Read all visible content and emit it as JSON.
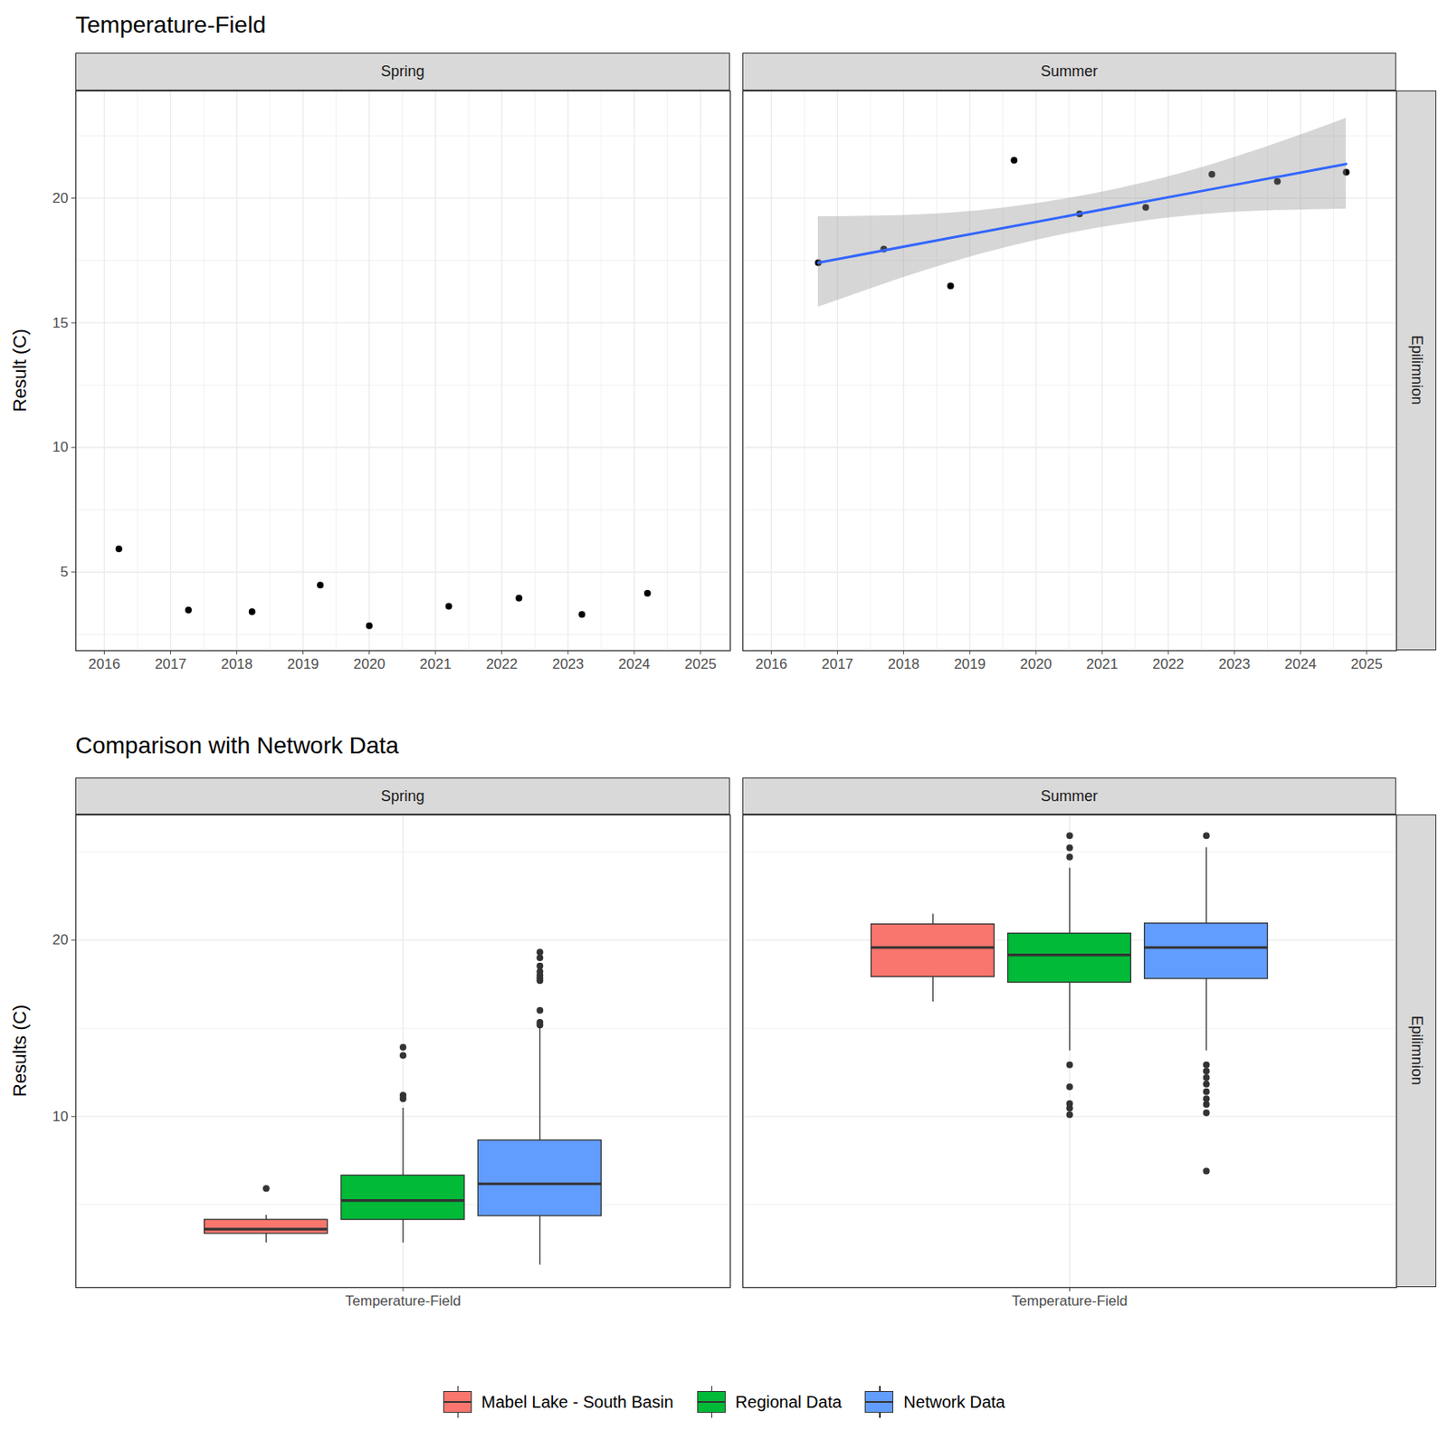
{
  "chart_data": [
    {
      "type": "scatter",
      "title": "Temperature-Field",
      "facet": "Spring",
      "y_label": "Result (C)",
      "x": [
        2016.22,
        2017.27,
        2018.23,
        2019.26,
        2020.0,
        2021.2,
        2022.26,
        2023.21,
        2024.2
      ],
      "values": [
        5.93,
        3.48,
        3.41,
        4.48,
        2.85,
        3.63,
        3.96,
        3.3,
        4.15
      ],
      "color": "#000000",
      "marker": "circle",
      "xlim": [
        2015.57,
        2025.45
      ],
      "xticks": [
        2016,
        2017,
        2018,
        2019,
        2020,
        2021,
        2022,
        2023,
        2024,
        2025
      ],
      "ylim": [
        1.85,
        24.3
      ],
      "yticks": [
        5,
        10,
        15,
        20
      ],
      "grid": true
    },
    {
      "type": "scatter",
      "facet": "Summer",
      "row_facet": "Epilimnion",
      "x": [
        2016.71,
        2017.7,
        2018.71,
        2019.67,
        2020.66,
        2021.66,
        2022.66,
        2023.65,
        2024.69
      ],
      "values": [
        17.41,
        17.96,
        16.48,
        21.52,
        19.37,
        19.63,
        20.96,
        20.67,
        21.04
      ],
      "color": "#000000",
      "marker": "circle",
      "trend": {
        "x": [
          2016.71,
          2018.7,
          2020.7,
          2022.7,
          2024.69
        ],
        "values": [
          17.41,
          18.4,
          19.39,
          20.38,
          21.37
        ],
        "lower": [
          15.63,
          17.4,
          18.69,
          19.38,
          19.56
        ],
        "upper": [
          19.26,
          19.4,
          20.09,
          21.38,
          23.2
        ],
        "color": "#3366FF"
      },
      "xlim": [
        2015.57,
        2025.45
      ],
      "xticks": [
        2016,
        2017,
        2018,
        2019,
        2020,
        2021,
        2022,
        2023,
        2024,
        2025
      ],
      "ylim": [
        1.85,
        24.3
      ],
      "yticks": [
        5,
        10,
        15,
        20
      ],
      "grid": true,
      "tick_labels": "x"
    },
    {
      "type": "box",
      "title": "Comparison with Network Data",
      "facet": "Spring",
      "y_label": "Results (C)",
      "categories": [
        "Temperature-Field"
      ],
      "series": [
        {
          "name": "Mabel Lake - South Basin",
          "color": "#F8766D",
          "whisker_low": 2.83,
          "q1": 3.35,
          "median": 3.61,
          "q3": 4.14,
          "whisker_high": 4.4,
          "outliers": [
            5.92
          ]
        },
        {
          "name": "Regional Data",
          "color": "#00BA38",
          "whisker_low": 2.83,
          "q1": 4.14,
          "median": 5.24,
          "q3": 6.65,
          "whisker_high": 10.47,
          "outliers": [
            11.0,
            11.2,
            13.46,
            13.93
          ]
        },
        {
          "name": "Network Data",
          "color": "#619CFF",
          "whisker_low": 1.57,
          "q1": 4.35,
          "median": 6.18,
          "q3": 8.64,
          "whisker_high": 15.45,
          "outliers": [
            15.18,
            15.34,
            16.02,
            17.7,
            17.85,
            18.01,
            18.22,
            18.53,
            19.0,
            19.32
          ]
        }
      ],
      "ylim": [
        0.3,
        27.1
      ],
      "yticks": [
        10,
        20
      ],
      "grid": true,
      "legend": "bottom"
    },
    {
      "type": "box",
      "facet": "Summer",
      "row_facet": "Epilimnion",
      "categories": [
        "Temperature-Field"
      ],
      "series": [
        {
          "name": "Mabel Lake - South Basin",
          "color": "#F8766D",
          "whisker_low": 16.49,
          "q1": 17.91,
          "median": 19.58,
          "q3": 20.89,
          "whisker_high": 21.47,
          "outliers": []
        },
        {
          "name": "Regional Data",
          "color": "#00BA38",
          "whisker_low": 13.72,
          "q1": 17.59,
          "median": 19.16,
          "q3": 20.37,
          "whisker_high": 24.08,
          "outliers": [
            25.92,
            25.24,
            24.71,
            12.93,
            11.68,
            10.73,
            10.47,
            10.1
          ]
        },
        {
          "name": "Network Data",
          "color": "#619CFF",
          "whisker_low": 13.72,
          "q1": 17.8,
          "median": 19.58,
          "q3": 20.94,
          "whisker_high": 25.24,
          "outliers": [
            25.92,
            12.93,
            12.57,
            12.2,
            11.83,
            11.41,
            11.0,
            10.68,
            10.21,
            6.91
          ]
        }
      ],
      "ylim": [
        0.3,
        27.1
      ],
      "yticks": [
        10,
        20
      ],
      "grid": true,
      "tick_labels": "x"
    }
  ]
}
